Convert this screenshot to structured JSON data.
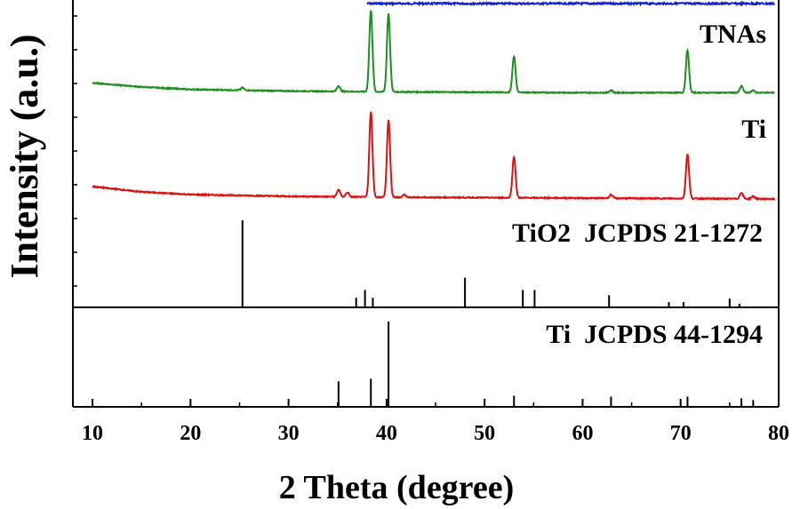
{
  "chart_data": {
    "type": "line",
    "title": "",
    "xlabel": "2 Theta (degree)",
    "ylabel": "Intensity (a.u.)",
    "xlim": [
      8,
      80
    ],
    "xticks": [
      10,
      20,
      30,
      40,
      50,
      60,
      70,
      80
    ],
    "grid": false,
    "series": [
      {
        "name": "TNAs",
        "color": "#1f8f1f",
        "baseline": [
          [
            10,
            0.16
          ],
          [
            15,
            0.11
          ],
          [
            20,
            0.08
          ],
          [
            30,
            0.06
          ],
          [
            40,
            0.05
          ],
          [
            60,
            0.04
          ],
          [
            80,
            0.04
          ]
        ],
        "peaks": [
          [
            25.3,
            0.03
          ],
          [
            35.1,
            0.07
          ],
          [
            38.4,
            1.0
          ],
          [
            40.2,
            0.96
          ],
          [
            53.0,
            0.44
          ],
          [
            62.9,
            0.03
          ],
          [
            70.7,
            0.52
          ],
          [
            76.2,
            0.08
          ],
          [
            77.4,
            0.03
          ]
        ]
      },
      {
        "name": "Ti",
        "color": "#e01010",
        "baseline": [
          [
            10,
            0.16
          ],
          [
            15,
            0.1
          ],
          [
            20,
            0.07
          ],
          [
            30,
            0.05
          ],
          [
            40,
            0.04
          ],
          [
            60,
            0.03
          ],
          [
            80,
            0.02
          ]
        ],
        "peaks": [
          [
            35.1,
            0.08
          ],
          [
            36.0,
            0.05
          ],
          [
            38.4,
            0.96
          ],
          [
            40.2,
            0.87
          ],
          [
            41.8,
            0.03
          ],
          [
            53.0,
            0.46
          ],
          [
            62.9,
            0.04
          ],
          [
            70.7,
            0.5
          ],
          [
            76.2,
            0.07
          ],
          [
            77.4,
            0.03
          ]
        ]
      }
    ],
    "reference_patterns": [
      {
        "name": "TiO2  JCPDS 21-1272",
        "lines": [
          [
            25.3,
            1.0
          ],
          [
            36.9,
            0.11
          ],
          [
            37.8,
            0.2
          ],
          [
            38.6,
            0.11
          ],
          [
            48.0,
            0.34
          ],
          [
            53.9,
            0.2
          ],
          [
            55.1,
            0.2
          ],
          [
            62.7,
            0.14
          ],
          [
            68.8,
            0.06
          ],
          [
            70.3,
            0.06
          ],
          [
            75.0,
            0.1
          ],
          [
            76.0,
            0.04
          ]
        ]
      },
      {
        "name": "Ti  JCPDS 44-1294",
        "lines": [
          [
            35.1,
            0.3
          ],
          [
            38.4,
            0.33
          ],
          [
            40.2,
            1.0
          ],
          [
            53.0,
            0.13
          ],
          [
            62.9,
            0.12
          ],
          [
            70.7,
            0.12
          ],
          [
            76.2,
            0.1
          ],
          [
            77.4,
            0.08
          ]
        ]
      }
    ]
  }
}
